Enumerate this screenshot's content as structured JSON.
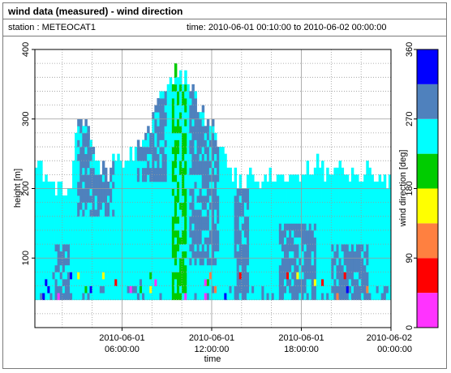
{
  "header": {
    "title": "wind data (measured) - wind direction",
    "station_label": "station : METEOCAT1",
    "time_label": "time: 2010-06-01 00:10:00 to 2010-06-02 00:00:00"
  },
  "chart_data": {
    "type": "heatmap",
    "title": "wind data (measured) - wind direction",
    "xlabel": "time",
    "ylabel": "height [m]",
    "colorbar_label": "wind direction [deg]",
    "xlim": [
      "2010-06-01 00:10:00",
      "2010-06-02 00:00:00"
    ],
    "x_ticks": [
      {
        "line1": "2010-06-01",
        "line2": "06:00:00",
        "hour": 6
      },
      {
        "line1": "2010-06-01",
        "line2": "12:00:00",
        "hour": 12
      },
      {
        "line1": "2010-06-01",
        "line2": "18:00:00",
        "hour": 18
      },
      {
        "line1": "2010-06-02",
        "line2": "00:00:00",
        "hour": 24
      }
    ],
    "ylim": [
      0,
      400
    ],
    "y_ticks": [
      100,
      200,
      300,
      400
    ],
    "grid": true,
    "lowest_level_m": 40,
    "colorbar": {
      "range": [
        0,
        360
      ],
      "ticks": [
        0,
        90,
        180,
        270,
        360
      ],
      "bins": [
        {
          "from": 0,
          "to": 45,
          "color": "#ff33ff"
        },
        {
          "from": 45,
          "to": 90,
          "color": "#ff0000"
        },
        {
          "from": 90,
          "to": 135,
          "color": "#ff8040"
        },
        {
          "from": 135,
          "to": 180,
          "color": "#ffff00"
        },
        {
          "from": 180,
          "to": 225,
          "color": "#00cc00"
        },
        {
          "from": 225,
          "to": 270,
          "color": "#00ffff"
        },
        {
          "from": 270,
          "to": 315,
          "color": "#4f81bd"
        },
        {
          "from": 315,
          "to": 360,
          "color": "#0000ff"
        }
      ]
    },
    "top_height_profile": {
      "hours": [
        0,
        0.5,
        1,
        1.5,
        2,
        2.5,
        3,
        3.5,
        4,
        4.5,
        5,
        5.5,
        6,
        6.5,
        7,
        7.5,
        8,
        8.5,
        9,
        9.5,
        10,
        10.5,
        11,
        11.5,
        12,
        12.5,
        13,
        13.5,
        14,
        14.5,
        15,
        15.5,
        16,
        16.5,
        17,
        17.5,
        18,
        18.5,
        19,
        19.5,
        20,
        20.5,
        21,
        21.5,
        22,
        22.5,
        23,
        23.5,
        24
      ],
      "height_m": [
        240,
        225,
        205,
        195,
        190,
        205,
        300,
        295,
        250,
        230,
        220,
        235,
        240,
        245,
        255,
        265,
        290,
        330,
        350,
        365,
        355,
        345,
        310,
        300,
        280,
        250,
        230,
        215,
        200,
        210,
        205,
        215,
        220,
        210,
        205,
        215,
        210,
        225,
        230,
        215,
        220,
        225,
        210,
        215,
        220,
        225,
        215,
        205,
        215
      ]
    },
    "dominant_direction_deg": 250,
    "secondary_direction_deg": 290
  }
}
